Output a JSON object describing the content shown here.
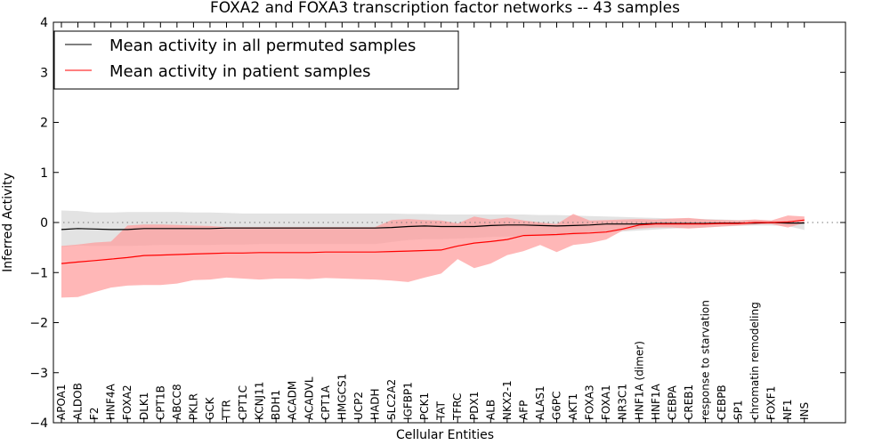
{
  "chart_data": {
    "type": "line",
    "title": "FOXA2 and FOXA3 transcription factor networks -- 43 samples",
    "xlabel": "Cellular Entities",
    "ylabel": "Inferred Activity",
    "ylim": [
      -4,
      4
    ],
    "yticks": [
      -4,
      -3,
      -2,
      -1,
      0,
      1,
      2,
      3,
      4
    ],
    "ytick_labels": [
      "−4",
      "−3",
      "−2",
      "−1",
      "0",
      "1",
      "2",
      "3",
      "4"
    ],
    "grid": false,
    "legend_position": "top-left",
    "reference_line": 0,
    "categories": [
      "APOA1",
      "ALDOB",
      "F2",
      "HNF4A",
      "FOXA2",
      "DLK1",
      "CPT1B",
      "ABCC8",
      "PKLR",
      "GCK",
      "TTR",
      "CPT1C",
      "KCNJ11",
      "BDH1",
      "ACADM",
      "ACADVL",
      "CPT1A",
      "HMGCS1",
      "UCP2",
      "HADH",
      "SLC2A2",
      "IGFBP1",
      "PCK1",
      "TAT",
      "TFRC",
      "PDX1",
      "ALB",
      "NKX2-1",
      "AFP",
      "ALAS1",
      "G6PC",
      "AKT1",
      "FOXA3",
      "FOXA1",
      "NR3C1",
      "HNF1A (dimer)",
      "HNF1A",
      "CEBPA",
      "CREB1",
      "response to starvation",
      "CEBPB",
      "SP1",
      "chromatin remodeling",
      "FOXF1",
      "NF1",
      "INS"
    ],
    "series": [
      {
        "name": "Mean activity in all permuted samples",
        "color": "#000000",
        "band_color": "#d9d9d9",
        "values": [
          -0.14,
          -0.12,
          -0.13,
          -0.14,
          -0.14,
          -0.12,
          -0.12,
          -0.12,
          -0.12,
          -0.12,
          -0.11,
          -0.11,
          -0.11,
          -0.11,
          -0.11,
          -0.11,
          -0.11,
          -0.11,
          -0.11,
          -0.11,
          -0.1,
          -0.08,
          -0.07,
          -0.08,
          -0.08,
          -0.08,
          -0.06,
          -0.05,
          -0.05,
          -0.06,
          -0.07,
          -0.06,
          -0.05,
          -0.03,
          -0.03,
          -0.03,
          -0.02,
          -0.02,
          -0.02,
          -0.02,
          -0.01,
          -0.01,
          -0.01,
          0.0,
          -0.01,
          -0.01
        ],
        "band_upper": [
          0.24,
          0.23,
          0.2,
          0.2,
          0.21,
          0.21,
          0.21,
          0.21,
          0.2,
          0.2,
          0.19,
          0.18,
          0.18,
          0.18,
          0.18,
          0.18,
          0.18,
          0.18,
          0.18,
          0.18,
          0.18,
          0.17,
          0.17,
          0.16,
          0.16,
          0.16,
          0.16,
          0.16,
          0.16,
          0.15,
          0.15,
          0.14,
          0.13,
          0.12,
          0.11,
          0.1,
          0.09,
          0.08,
          0.08,
          0.07,
          0.06,
          0.05,
          0.05,
          0.04,
          0.03,
          0.04
        ],
        "band_lower": [
          -0.49,
          -0.46,
          -0.47,
          -0.47,
          -0.47,
          -0.46,
          -0.45,
          -0.45,
          -0.45,
          -0.45,
          -0.44,
          -0.44,
          -0.43,
          -0.43,
          -0.43,
          -0.43,
          -0.43,
          -0.43,
          -0.43,
          -0.43,
          -0.39,
          -0.35,
          -0.33,
          -0.33,
          -0.32,
          -0.31,
          -0.29,
          -0.28,
          -0.27,
          -0.27,
          -0.27,
          -0.25,
          -0.23,
          -0.2,
          -0.18,
          -0.16,
          -0.14,
          -0.12,
          -0.11,
          -0.1,
          -0.08,
          -0.07,
          -0.06,
          -0.06,
          -0.07,
          -0.15
        ]
      },
      {
        "name": "Mean activity in patient samples",
        "color": "#ff0000",
        "band_color": "#ff9999",
        "values": [
          -0.82,
          -0.79,
          -0.76,
          -0.73,
          -0.7,
          -0.66,
          -0.65,
          -0.64,
          -0.63,
          -0.62,
          -0.61,
          -0.61,
          -0.6,
          -0.6,
          -0.6,
          -0.6,
          -0.59,
          -0.59,
          -0.59,
          -0.59,
          -0.58,
          -0.57,
          -0.56,
          -0.55,
          -0.47,
          -0.41,
          -0.38,
          -0.34,
          -0.26,
          -0.25,
          -0.24,
          -0.22,
          -0.21,
          -0.19,
          -0.13,
          -0.05,
          -0.03,
          -0.03,
          -0.03,
          -0.03,
          -0.02,
          -0.02,
          0.0,
          0.0,
          0.01,
          0.05
        ],
        "band_upper": [
          -0.47,
          -0.44,
          -0.4,
          -0.38,
          -0.06,
          -0.04,
          -0.04,
          -0.05,
          -0.06,
          -0.07,
          -0.09,
          -0.09,
          -0.09,
          -0.09,
          -0.09,
          -0.09,
          -0.09,
          -0.09,
          -0.09,
          -0.09,
          0.05,
          0.07,
          0.05,
          0.04,
          -0.02,
          0.12,
          0.06,
          0.1,
          0.04,
          0.0,
          -0.03,
          0.17,
          0.04,
          0.05,
          0.06,
          0.07,
          0.06,
          0.08,
          0.09,
          0.06,
          0.05,
          0.04,
          0.06,
          0.04,
          0.14,
          0.12
        ],
        "band_lower": [
          -1.5,
          -1.49,
          -1.39,
          -1.3,
          -1.26,
          -1.25,
          -1.25,
          -1.22,
          -1.15,
          -1.14,
          -1.1,
          -1.12,
          -1.14,
          -1.12,
          -1.12,
          -1.13,
          -1.11,
          -1.12,
          -1.13,
          -1.14,
          -1.16,
          -1.19,
          -1.1,
          -1.02,
          -0.73,
          -0.91,
          -0.82,
          -0.65,
          -0.57,
          -0.45,
          -0.59,
          -0.45,
          -0.41,
          -0.34,
          -0.16,
          -0.12,
          -0.1,
          -0.1,
          -0.12,
          -0.1,
          -0.08,
          -0.06,
          -0.04,
          -0.03,
          -0.1,
          -0.01
        ]
      }
    ]
  }
}
